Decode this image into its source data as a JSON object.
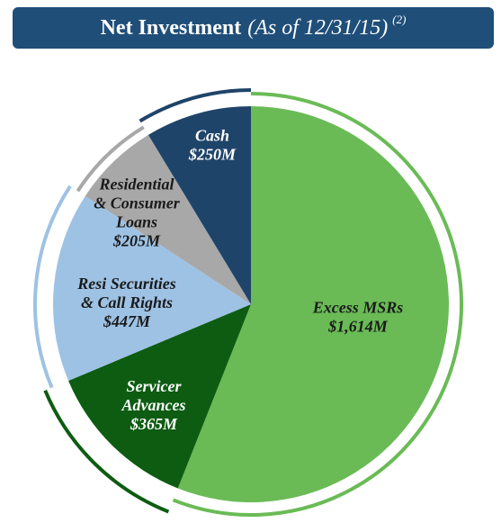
{
  "title": {
    "main": "Net Investment",
    "sub": "(As of 12/31/15)",
    "note": "(2)"
  },
  "colors": {
    "banner": "#1f4e79",
    "excess_msrs": "#6abb56",
    "servicer_advances": "#0d5c12",
    "resi_securities": "#9ec2e4",
    "consumer_loans": "#a8a8a8",
    "cash": "#1f4469"
  },
  "chart_data": {
    "type": "pie",
    "title": "Net Investment (As of 12/31/15)",
    "units": "$M",
    "slices": [
      {
        "key": "excess_msrs",
        "lines": [
          "Excess MSRs",
          "$1,614M"
        ],
        "value": 1614,
        "label_color": "#1a1a1a"
      },
      {
        "key": "servicer_advances",
        "lines": [
          "Servicer",
          "Advances",
          "$365M"
        ],
        "value": 365,
        "label_color": "#ffffff"
      },
      {
        "key": "resi_securities",
        "lines": [
          "Resi Securities",
          "& Call Rights",
          "$447M"
        ],
        "value": 447,
        "label_color": "#1a1a1a"
      },
      {
        "key": "consumer_loans",
        "lines": [
          "Residential",
          "& Consumer",
          "Loans",
          "$205M"
        ],
        "value": 205,
        "label_color": "#1a1a1a"
      },
      {
        "key": "cash",
        "lines": [
          "Cash",
          "$250M"
        ],
        "value": 250,
        "label_color": "#ffffff"
      }
    ]
  }
}
